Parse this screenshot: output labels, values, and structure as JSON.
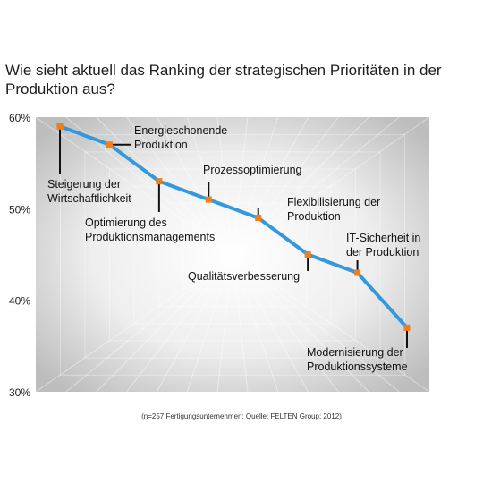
{
  "title": "Wie sieht aktuell das Ranking der strategischen Prioritäten in der Produktion aus?",
  "footnote": "(n=257 Fertigungsunternehmen; Quelle: FELTEN Group; 2012)",
  "colors": {
    "line": "#3399dd",
    "marker": "#f07f1a",
    "leader": "#111111"
  },
  "chart_data": {
    "type": "line",
    "y_ticks": [
      "60%",
      "50%",
      "40%",
      "30%"
    ],
    "ylim": [
      30,
      60
    ],
    "grid": false,
    "points": [
      {
        "label": [
          "Steigerung der",
          "Wirtschaftlichkeit"
        ],
        "value": 59
      },
      {
        "label": [
          "Energieschonende",
          "Produktion"
        ],
        "value": 57
      },
      {
        "label": [
          "Optimierung des",
          "Produktionsmanagements"
        ],
        "value": 53
      },
      {
        "label": [
          "Prozessoptimierung"
        ],
        "value": 51
      },
      {
        "label": [
          "Flexibilisierung der",
          "Produktion"
        ],
        "value": 49
      },
      {
        "label": [
          "Qualitätsverbesserung"
        ],
        "value": 45
      },
      {
        "label": [
          "IT-Sicherheit in",
          "der Produktion"
        ],
        "value": 43
      },
      {
        "label": [
          "Modernisierung der",
          "Produktionssysteme"
        ],
        "value": 37
      }
    ]
  }
}
